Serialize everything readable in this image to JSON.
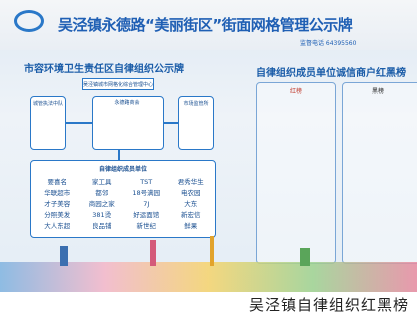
{
  "board": {
    "title": "吴泾镇永德路“美丽街区”街面网格管理公示牌",
    "phone": "监督电话 64395560",
    "left_panel": {
      "title": "市容环境卫生责任区自律组织公示牌",
      "top_box": "吴泾镇城市网格化综合管理中心",
      "middle_box": "永德路商会",
      "left_box": "城管执法中队",
      "right_box": "市场监管所",
      "member_heading": "自律组织成员单位",
      "members": [
        [
          "要喜名",
          "华联超市",
          "才子美容",
          "分照美发",
          "大人东超"
        ],
        [
          "家工具",
          "都邻",
          "商园之家",
          "381烫",
          "良品铺"
        ],
        [
          "TST",
          "18号满园",
          "7J",
          "好运面馆",
          "新世纪"
        ],
        [
          "君秀华生",
          "电农园",
          "大东",
          "新宏信",
          "鲜果"
        ]
      ]
    },
    "right_panel": {
      "title": "自律组织成员单位诚信商户红黑榜",
      "red_list": "红榜",
      "black_list": "黑榜"
    }
  },
  "caption": "吴泾镇自律组织红黑榜"
}
